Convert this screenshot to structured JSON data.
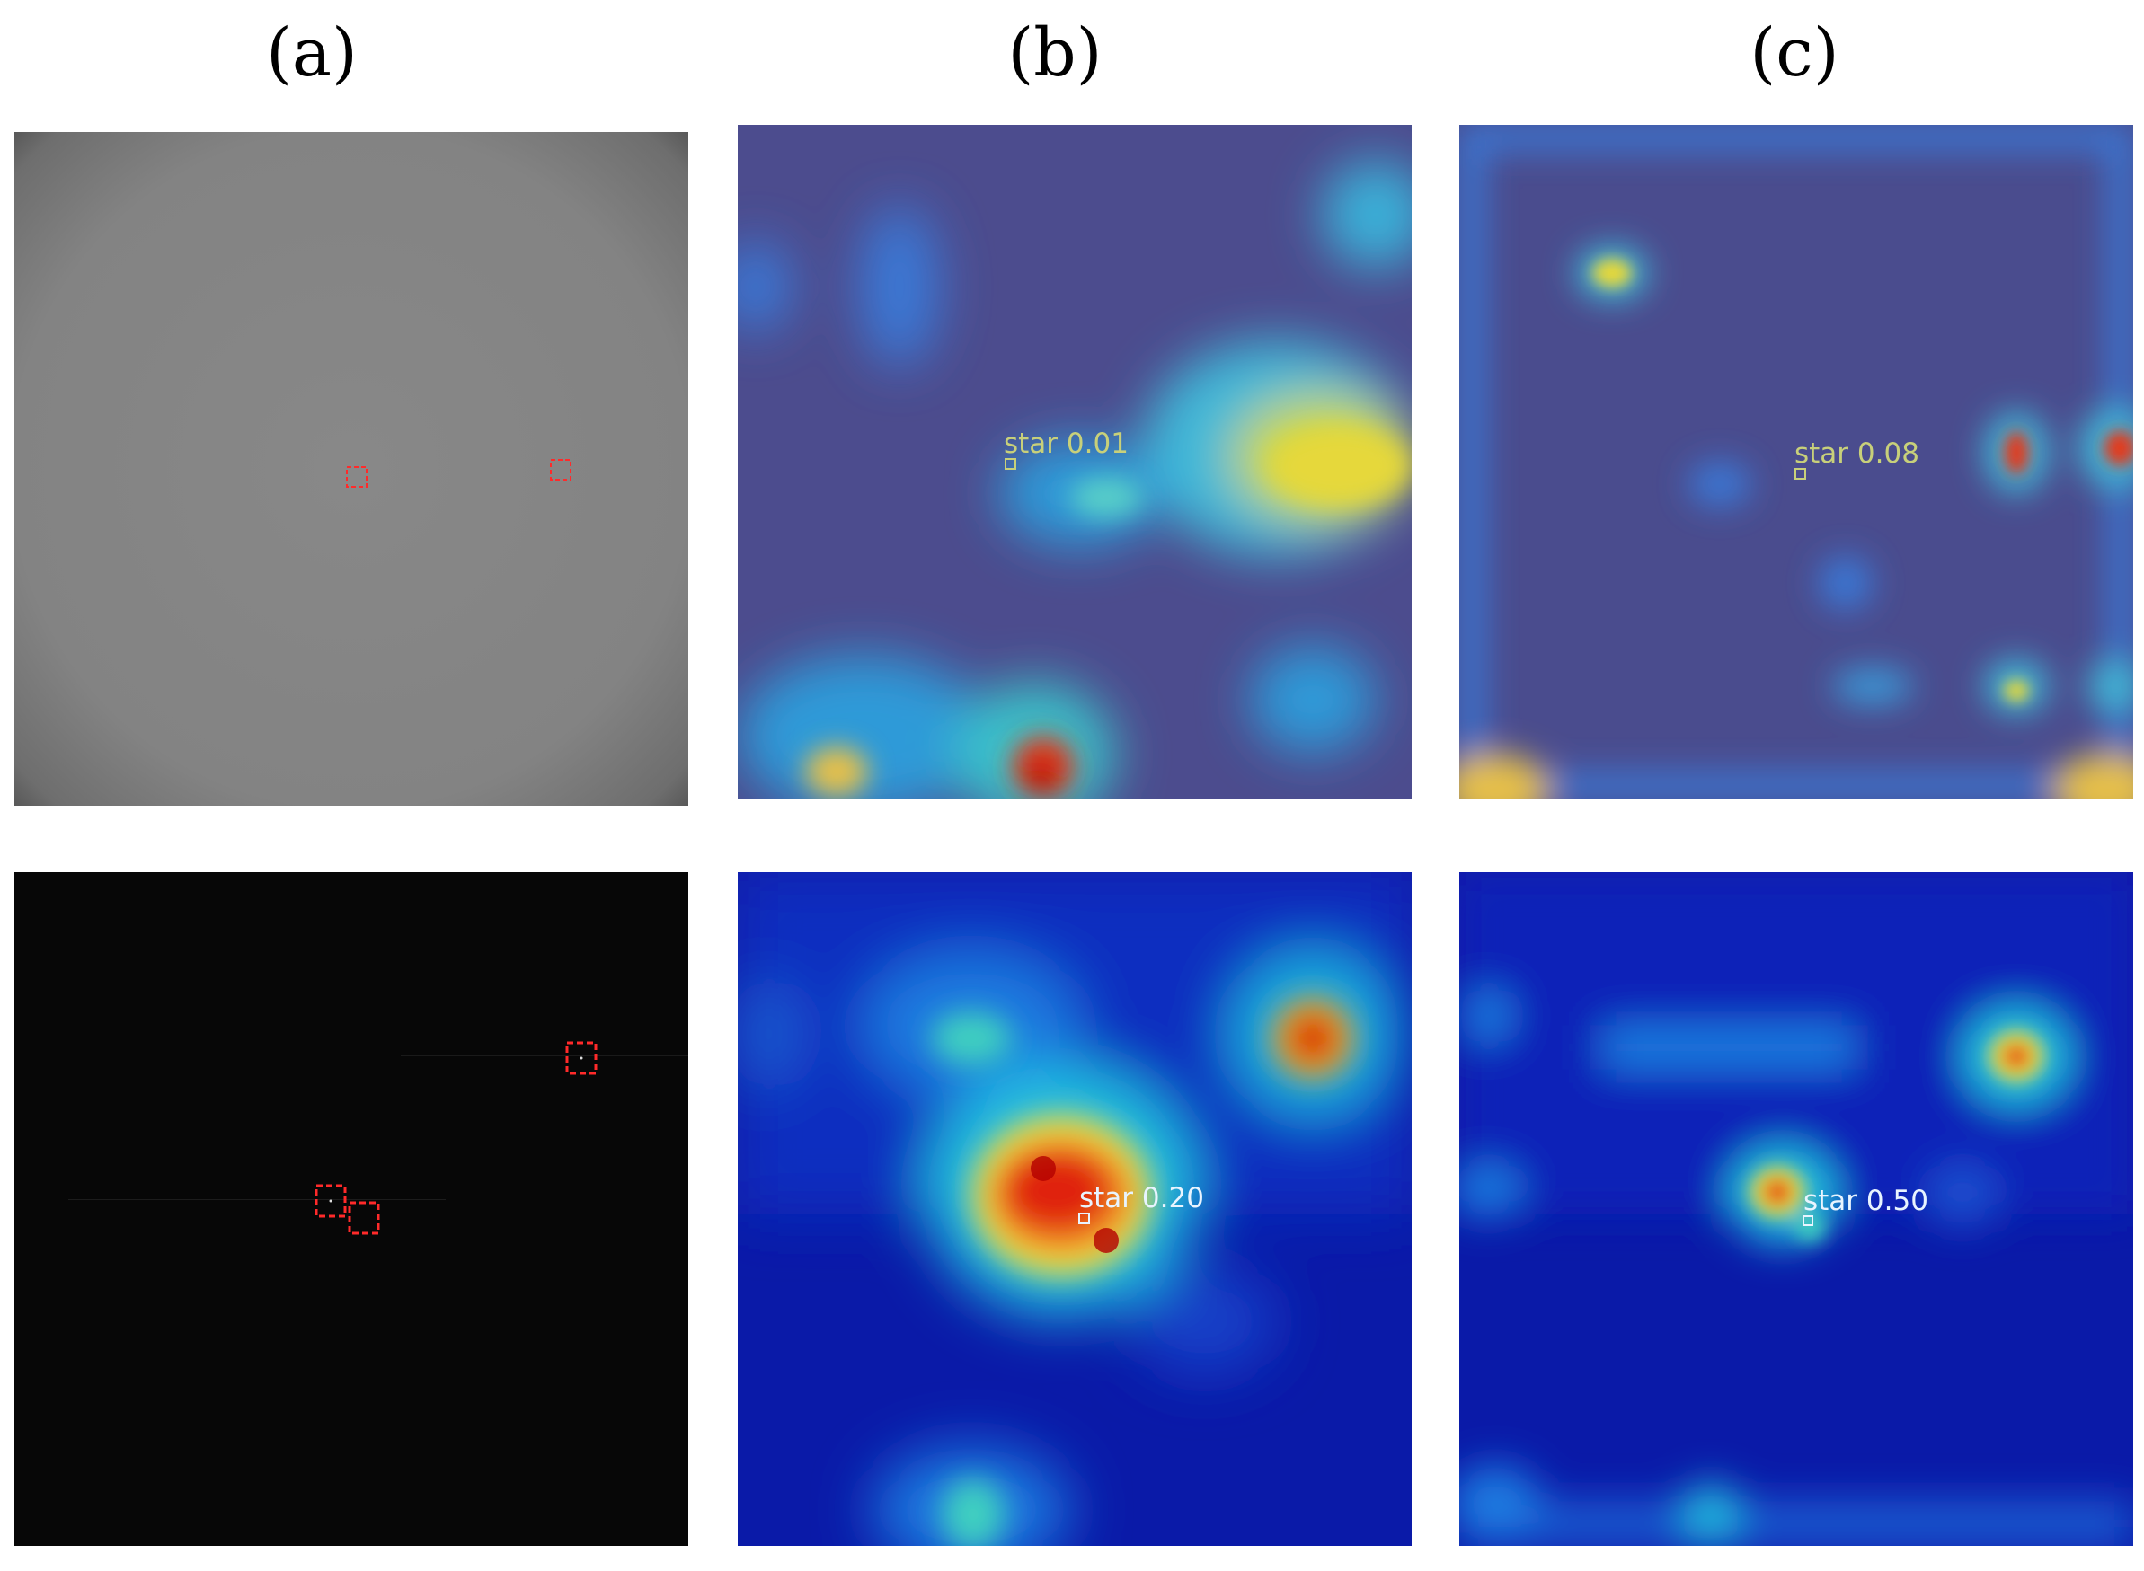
{
  "columns": [
    {
      "label": "(a)"
    },
    {
      "label": "(b)"
    },
    {
      "label": "(c)"
    }
  ],
  "detections": {
    "top_b": {
      "text": "star 0.01",
      "confidence": 0.01
    },
    "top_c": {
      "text": "star 0.08",
      "confidence": 0.08
    },
    "bottom_b": {
      "text": "star 0.20",
      "confidence": 0.2
    },
    "bottom_c": {
      "text": "star 0.50",
      "confidence": 0.5
    }
  },
  "colors": {
    "box": "#ff2a2a",
    "heatmap_low": "#00008b",
    "heatmap_high": "#d40000"
  }
}
